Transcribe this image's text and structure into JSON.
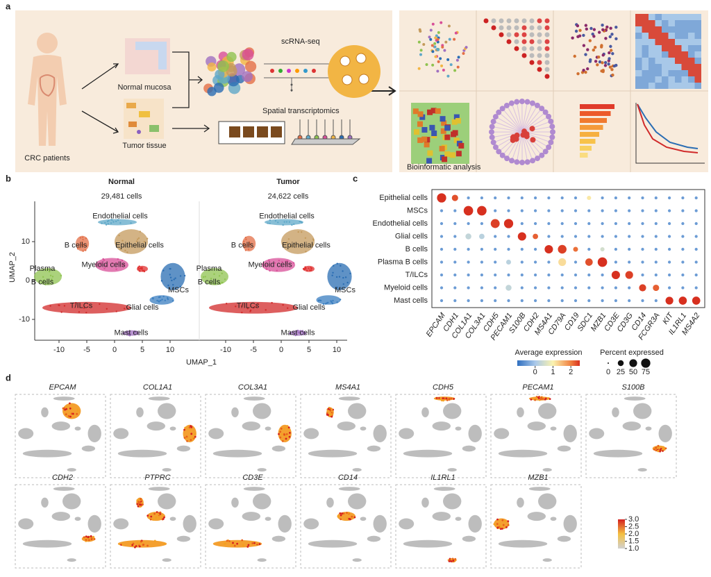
{
  "panel_a": {
    "label": "a",
    "patients": "CRC patients",
    "normal": "Normal mucosa",
    "tumor": "Tumor tissue",
    "scrna": "scRNA-seq",
    "spatial": "Spatial transcriptomics",
    "analysis": "Bioinformatic analysis"
  },
  "panel_b": {
    "label": "b",
    "plots": [
      {
        "title": "Normal",
        "count": "29,481 cells"
      },
      {
        "title": "Tumor",
        "count": "24,622 cells"
      }
    ],
    "x_label": "UMAP_1",
    "y_label": "UMAP_2",
    "xticks": [
      -10,
      -5,
      0,
      5,
      10
    ],
    "yticks": [
      10,
      0,
      -10
    ],
    "clusters": [
      "Endothelial cells",
      "B cells",
      "Epithelial cells",
      "Myeloid cells",
      "T/ILCs",
      "Glial cells",
      "MSCs",
      "Mast cells"
    ],
    "plasma_label": [
      "Plasma",
      "B cells"
    ]
  },
  "panel_c": {
    "label": "c",
    "rows": [
      "Epithelial cells",
      "MSCs",
      "Endothelial cells",
      "Glial cells",
      "B cells",
      "Plasma B cells",
      "T/ILCs",
      "Myeloid cells",
      "Mast cells"
    ],
    "genes": [
      "EPCAM",
      "CDH1",
      "COL1A1",
      "COL3A1",
      "CDH5",
      "PECAM1",
      "S100B",
      "CDH2",
      "MS4A1",
      "CD79A",
      "CD19",
      "SDC1",
      "MZB1",
      "CD3E",
      "CD3G",
      "CD14",
      "FCGR3A",
      "KIT",
      "IL1RL1",
      "MS4A2"
    ],
    "percent": [
      [
        75,
        30,
        3,
        3,
        3,
        3,
        3,
        3,
        3,
        3,
        3,
        10,
        3,
        3,
        3,
        3,
        3,
        3,
        3,
        3
      ],
      [
        3,
        3,
        80,
        80,
        3,
        3,
        3,
        3,
        3,
        3,
        3,
        3,
        3,
        3,
        3,
        3,
        3,
        3,
        3,
        3
      ],
      [
        3,
        3,
        3,
        3,
        70,
        75,
        3,
        3,
        3,
        3,
        3,
        3,
        3,
        3,
        3,
        3,
        3,
        3,
        3,
        3
      ],
      [
        3,
        3,
        25,
        20,
        3,
        3,
        60,
        20,
        3,
        3,
        3,
        3,
        3,
        3,
        3,
        3,
        3,
        3,
        3,
        3
      ],
      [
        3,
        3,
        3,
        3,
        3,
        3,
        3,
        3,
        60,
        65,
        15,
        3,
        10,
        3,
        3,
        3,
        3,
        3,
        3,
        3
      ],
      [
        3,
        3,
        3,
        3,
        3,
        15,
        3,
        3,
        3,
        50,
        3,
        45,
        80,
        3,
        3,
        3,
        3,
        3,
        3,
        3
      ],
      [
        3,
        3,
        3,
        3,
        3,
        3,
        3,
        3,
        3,
        3,
        3,
        3,
        3,
        60,
        50,
        3,
        3,
        3,
        3,
        3
      ],
      [
        3,
        3,
        3,
        3,
        3,
        25,
        3,
        3,
        3,
        3,
        3,
        3,
        3,
        3,
        3,
        40,
        30,
        3,
        3,
        3
      ],
      [
        3,
        3,
        3,
        3,
        3,
        3,
        3,
        3,
        3,
        3,
        3,
        3,
        3,
        3,
        3,
        3,
        3,
        50,
        55,
        55
      ]
    ],
    "expression": [
      [
        2.5,
        2.3,
        -0.5,
        -0.5,
        -0.5,
        -0.5,
        -0.5,
        -0.5,
        -0.5,
        -0.5,
        -0.5,
        1.1,
        -0.5,
        -0.5,
        -0.5,
        -0.5,
        -0.5,
        -0.5,
        -0.5,
        -0.5
      ],
      [
        -0.5,
        -0.5,
        2.5,
        2.5,
        -0.5,
        -0.5,
        -0.5,
        -0.5,
        -0.5,
        -0.5,
        -0.5,
        -0.5,
        -0.5,
        -0.5,
        -0.5,
        -0.5,
        -0.5,
        -0.5,
        -0.5,
        -0.5
      ],
      [
        -0.5,
        -0.5,
        -0.5,
        -0.5,
        2.4,
        2.5,
        -0.5,
        -0.5,
        -0.5,
        -0.5,
        -0.5,
        -0.5,
        -0.5,
        -0.5,
        -0.5,
        -0.5,
        -0.5,
        -0.5,
        -0.5,
        -0.5
      ],
      [
        -0.5,
        -0.5,
        0.3,
        0.2,
        -0.5,
        -0.5,
        2.5,
        2.2,
        -0.5,
        -0.5,
        -0.5,
        -0.5,
        -0.5,
        -0.5,
        -0.5,
        -0.5,
        -0.5,
        -0.5,
        -0.5,
        -0.5
      ],
      [
        -0.5,
        -0.5,
        -0.5,
        -0.5,
        -0.5,
        -0.5,
        -0.5,
        -0.5,
        2.5,
        2.4,
        2.1,
        -0.5,
        0.5,
        -0.5,
        -0.5,
        -0.5,
        -0.5,
        -0.5,
        -0.5,
        -0.5
      ],
      [
        -0.5,
        -0.5,
        -0.5,
        -0.5,
        -0.5,
        0.2,
        -0.5,
        -0.5,
        -0.5,
        1.2,
        -0.5,
        2.3,
        2.5,
        -0.5,
        -0.5,
        -0.5,
        -0.5,
        -0.5,
        -0.5,
        -0.5
      ],
      [
        -0.5,
        -0.5,
        -0.5,
        -0.5,
        -0.5,
        -0.5,
        -0.5,
        -0.5,
        -0.5,
        -0.5,
        -0.5,
        -0.5,
        -0.5,
        2.5,
        2.4,
        -0.5,
        -0.5,
        -0.5,
        -0.5,
        -0.5
      ],
      [
        -0.5,
        -0.5,
        -0.5,
        -0.5,
        -0.5,
        0.3,
        -0.5,
        -0.5,
        -0.5,
        -0.5,
        -0.5,
        -0.5,
        -0.5,
        -0.5,
        -0.5,
        2.4,
        2.2,
        -0.5,
        -0.5,
        -0.5
      ],
      [
        -0.5,
        -0.5,
        -0.5,
        -0.5,
        -0.5,
        -0.5,
        -0.5,
        -0.5,
        -0.5,
        -0.5,
        -0.5,
        -0.5,
        -0.5,
        -0.5,
        -0.5,
        -0.5,
        -0.5,
        2.5,
        2.5,
        2.5
      ]
    ],
    "expression_title": "Average expression",
    "expression_lim": [
      -1,
      2.5
    ],
    "expression_ticks": [
      0,
      1,
      2
    ],
    "percent_title": "Percent expressed",
    "percent_ticks": [
      0,
      25,
      50,
      75
    ]
  },
  "panel_d": {
    "label": "d",
    "genes": [
      "EPCAM",
      "COL1A1",
      "COL3A1",
      "MS4A1",
      "CDH5",
      "PECAM1",
      "S100B",
      "CDH2",
      "PTPRC",
      "CD3E",
      "CD14",
      "IL1RL1",
      "MZB1"
    ],
    "colorbar_ticks": [
      {
        "value": 3,
        "label": "3.0"
      },
      {
        "value": 2.5,
        "label": "2.5"
      },
      {
        "value": 2,
        "label": "2.0"
      },
      {
        "value": 1.5,
        "label": "1.5"
      },
      {
        "value": 1,
        "label": "1.0"
      }
    ]
  }
}
